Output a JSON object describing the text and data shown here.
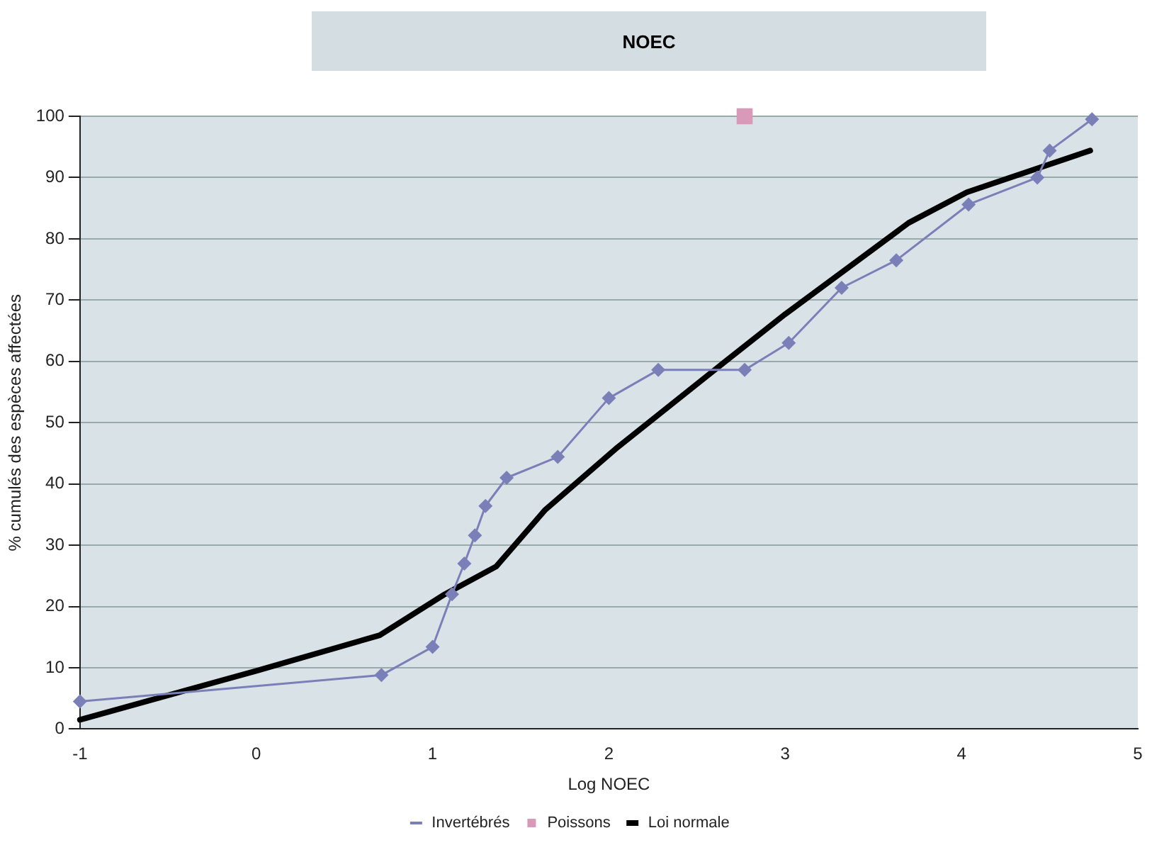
{
  "chart_data": {
    "type": "line",
    "title": "NOEC",
    "xlabel": "Log NOEC",
    "ylabel": "% cumulés des espèces affectées",
    "xlim": [
      -1,
      5
    ],
    "xticks": [
      -1,
      0,
      1,
      2,
      3,
      4,
      5
    ],
    "ylim": [
      0,
      100
    ],
    "yticks": [
      0,
      10,
      20,
      30,
      40,
      50,
      60,
      70,
      80,
      90,
      100
    ],
    "grid": "y",
    "legend": "bottom",
    "series": [
      {
        "name": "Invertébrés",
        "color": "#7b7fb8",
        "marker": "diamond",
        "x": [
          -1,
          0.71,
          1.0,
          1.11,
          1.18,
          1.24,
          1.3,
          1.42,
          1.71,
          2.0,
          2.28,
          2.77,
          3.02,
          3.32,
          3.63,
          4.04,
          4.43,
          4.5,
          4.74
        ],
        "values": [
          4.5,
          8.8,
          13.4,
          22,
          27,
          31.6,
          36.4,
          41,
          44.4,
          54,
          58.6,
          58.6,
          63,
          72,
          76.5,
          85.6,
          90,
          94.4,
          99.5
        ]
      },
      {
        "name": "Poissons",
        "color": "#d89ab8",
        "marker": "square",
        "type": "scatter",
        "x": [
          2.77
        ],
        "values": [
          100
        ]
      },
      {
        "name": "Loi normale",
        "color": "#000000",
        "marker": "none",
        "x": [
          -1,
          0,
          0.7,
          1.07,
          1.36,
          1.64,
          2.05,
          2.63,
          3,
          3.7,
          4.03,
          4.73
        ],
        "values": [
          1.5,
          9.5,
          15.3,
          22,
          26.5,
          35.8,
          46,
          59.3,
          67.7,
          82.6,
          87.6,
          94.4
        ]
      }
    ]
  }
}
